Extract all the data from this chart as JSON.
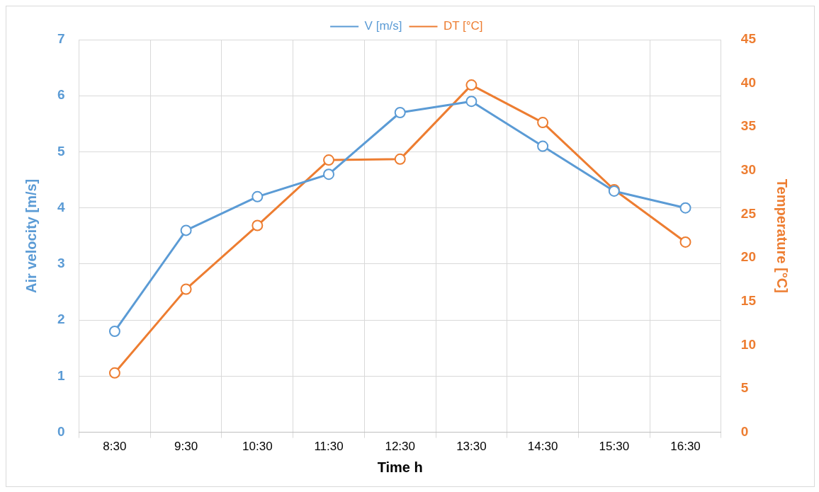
{
  "chart_data": {
    "type": "line",
    "xlabel": "Time h",
    "ylabel": "Air velocity [m/s]",
    "y2label": "Temperature [°C]",
    "categories": [
      "8:30",
      "9:30",
      "10:30",
      "11:30",
      "12:30",
      "13:30",
      "14:30",
      "15:30",
      "16:30"
    ],
    "series": [
      {
        "name": "V [m/s]",
        "color": "#5b9bd5",
        "values": [
          1.8,
          3.6,
          4.2,
          4.6,
          5.7,
          5.9,
          5.1,
          4.3,
          4.0
        ]
      },
      {
        "name": "DT [°C]",
        "color": "#ed7d31",
        "axis": "y2",
        "values": [
          6.8,
          16.4,
          23.7,
          31.2,
          31.3,
          39.8,
          35.5,
          27.8,
          21.8
        ]
      }
    ],
    "ylim": [
      0,
      7
    ],
    "yticks": [
      0,
      1,
      2,
      3,
      4,
      5,
      6,
      7
    ],
    "y2lim": [
      0,
      45
    ],
    "y2ticks": [
      0,
      5,
      10,
      15,
      20,
      25,
      30,
      35,
      40,
      45
    ],
    "grid": true,
    "legend": "top",
    "marker": "circle",
    "line_style": "solid"
  }
}
